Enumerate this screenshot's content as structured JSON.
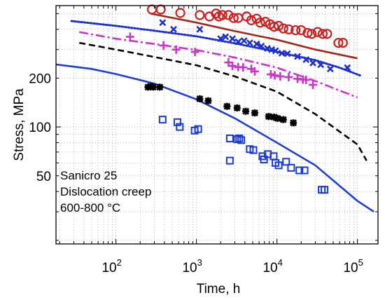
{
  "chart_data": {
    "type": "scatter",
    "title": "",
    "xlabel": "Time, h",
    "ylabel": "Stress, MPa",
    "x_scale": "log",
    "y_scale": "log",
    "xlim": [
      18,
      180000
    ],
    "ylim": [
      19,
      560
    ],
    "grid": true,
    "x_ticks": [
      {
        "value": 100,
        "base": "10",
        "exp": "2"
      },
      {
        "value": 1000,
        "base": "10",
        "exp": "3"
      },
      {
        "value": 10000,
        "base": "10",
        "exp": "4"
      },
      {
        "value": 100000,
        "base": "10",
        "exp": "5"
      }
    ],
    "y_ticks": [
      {
        "value": 50,
        "label": "50"
      },
      {
        "value": 100,
        "label": "100"
      },
      {
        "value": 200,
        "label": "200"
      }
    ],
    "annotations": [
      "Sanicro 25",
      "Dislocation creep",
      "600-800 °C"
    ],
    "colors": {
      "red": "#cc1f1f",
      "darkred": "#a02a1a",
      "blue": "#1f3fd4",
      "navy": "#1c2fd0",
      "magenta": "#cc33cc",
      "black": "#000000",
      "square": "#1a3ad6"
    },
    "series": [
      {
        "marker": "circle",
        "color": "#cc1f1f",
        "points": [
          [
            280,
            530
          ],
          [
            360,
            530
          ],
          [
            630,
            505
          ],
          [
            1100,
            490
          ],
          [
            1450,
            480
          ],
          [
            1750,
            500
          ],
          [
            1900,
            480
          ],
          [
            2100,
            490
          ],
          [
            2500,
            490
          ],
          [
            2900,
            470
          ],
          [
            3300,
            470
          ],
          [
            4200,
            480
          ],
          [
            4800,
            455
          ],
          [
            5600,
            465
          ],
          [
            6200,
            440
          ],
          [
            7200,
            445
          ],
          [
            8200,
            430
          ],
          [
            9200,
            415
          ],
          [
            10500,
            420
          ],
          [
            12000,
            405
          ],
          [
            14000,
            400
          ],
          [
            17000,
            395
          ],
          [
            20000,
            395
          ],
          [
            24000,
            380
          ],
          [
            27000,
            375
          ],
          [
            32000,
            385
          ],
          [
            37000,
            375
          ],
          [
            42000,
            375
          ],
          [
            58000,
            330
          ],
          [
            66000,
            330
          ]
        ]
      },
      {
        "marker": "x",
        "color": "#1c2fd0",
        "points": [
          [
            380,
            440
          ],
          [
            520,
            400
          ],
          [
            1100,
            400
          ],
          [
            2000,
            350
          ],
          [
            2300,
            360
          ],
          [
            2800,
            350
          ],
          [
            3300,
            335
          ],
          [
            3900,
            340
          ],
          [
            4600,
            330
          ],
          [
            5600,
            325
          ],
          [
            6400,
            315
          ],
          [
            7600,
            305
          ],
          [
            8600,
            300
          ],
          [
            9600,
            295
          ],
          [
            11500,
            285
          ],
          [
            13500,
            283
          ],
          [
            18000,
            272
          ],
          [
            23000,
            260
          ],
          [
            28000,
            248
          ],
          [
            35000,
            242
          ],
          [
            46000,
            228
          ],
          [
            75000,
            232
          ]
        ]
      },
      {
        "marker": "plus",
        "color": "#cc33cc",
        "points": [
          [
            150,
            360
          ],
          [
            390,
            318
          ],
          [
            560,
            300
          ],
          [
            960,
            290
          ],
          [
            2500,
            250
          ],
          [
            2800,
            238
          ],
          [
            3300,
            234
          ],
          [
            3800,
            233
          ],
          [
            4800,
            228
          ],
          [
            5300,
            220
          ],
          [
            8400,
            211
          ],
          [
            9400,
            208
          ],
          [
            11000,
            205
          ],
          [
            14000,
            203
          ],
          [
            18000,
            198
          ],
          [
            21000,
            196
          ],
          [
            23000,
            195
          ],
          [
            28000,
            182
          ]
        ]
      },
      {
        "marker": "asterisk",
        "color": "#000000",
        "points": [
          [
            250,
            176
          ],
          [
            270,
            178
          ],
          [
            290,
            176
          ],
          [
            350,
            176
          ],
          [
            1100,
            149
          ],
          [
            1400,
            145
          ],
          [
            2400,
            134
          ],
          [
            3200,
            131
          ],
          [
            4100,
            125
          ],
          [
            5300,
            122
          ],
          [
            7900,
            116
          ],
          [
            9200,
            115
          ],
          [
            10200,
            113
          ],
          [
            12000,
            111
          ],
          [
            16000,
            106
          ]
        ]
      },
      {
        "marker": "square",
        "color": "#1a3ad6",
        "points": [
          [
            380,
            111
          ],
          [
            580,
            107
          ],
          [
            620,
            100
          ],
          [
            1050,
            97
          ],
          [
            950,
            95
          ],
          [
            2600,
            85
          ],
          [
            3200,
            84
          ],
          [
            3400,
            85
          ],
          [
            3600,
            83
          ],
          [
            4600,
            73
          ],
          [
            5100,
            72
          ],
          [
            6600,
            66
          ],
          [
            6900,
            63
          ],
          [
            7700,
            68
          ],
          [
            9100,
            66
          ],
          [
            9600,
            60
          ],
          [
            10500,
            58
          ],
          [
            13000,
            61
          ],
          [
            15000,
            56
          ],
          [
            19000,
            54
          ],
          [
            22000,
            54
          ],
          [
            36000,
            41
          ],
          [
            39000,
            41
          ],
          [
            2600,
            62
          ]
        ]
      }
    ],
    "fits": [
      {
        "style": "solid",
        "color": "#a02a1a",
        "points": [
          [
            270,
            500
          ],
          [
            1000,
            440
          ],
          [
            3000,
            390
          ],
          [
            10000,
            345
          ],
          [
            30000,
            300
          ],
          [
            100000,
            265
          ]
        ]
      },
      {
        "style": "dotted",
        "color": "#1c2fd0",
        "points": [
          [
            28,
            450
          ],
          [
            100,
            420
          ],
          [
            300,
            392
          ],
          [
            1000,
            362
          ],
          [
            3000,
            328
          ],
          [
            10000,
            290
          ],
          [
            30000,
            258
          ],
          [
            60000,
            232
          ],
          [
            110000,
            207
          ]
        ]
      },
      {
        "style": "dashdot",
        "color": "#cc33cc",
        "points": [
          [
            35,
            385
          ],
          [
            100,
            350
          ],
          [
            300,
            325
          ],
          [
            1000,
            298
          ],
          [
            3000,
            268
          ],
          [
            10000,
            232
          ],
          [
            30000,
            192
          ],
          [
            100000,
            152
          ]
        ]
      },
      {
        "style": "dashed",
        "color": "#000000",
        "points": [
          [
            35,
            330
          ],
          [
            100,
            300
          ],
          [
            300,
            270
          ],
          [
            1000,
            240
          ],
          [
            3000,
            205
          ],
          [
            10000,
            165
          ],
          [
            30000,
            120
          ],
          [
            100000,
            78
          ],
          [
            130000,
            62
          ]
        ]
      },
      {
        "style": "solid",
        "color": "#1f3fd4",
        "points": [
          [
            18,
            243
          ],
          [
            50,
            228
          ],
          [
            100,
            212
          ],
          [
            300,
            185
          ],
          [
            1000,
            148
          ],
          [
            3000,
            113
          ],
          [
            10000,
            80
          ],
          [
            30000,
            58
          ],
          [
            100000,
            35
          ],
          [
            160000,
            30
          ]
        ]
      }
    ]
  }
}
